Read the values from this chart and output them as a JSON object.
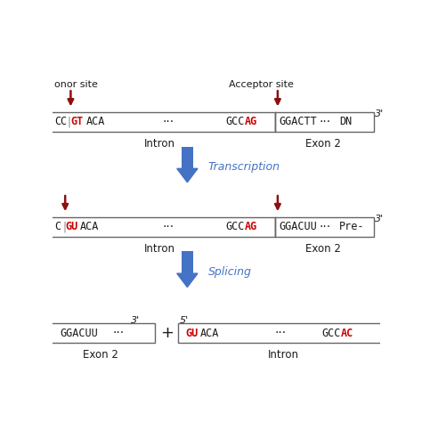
{
  "bg_color": "#ffffff",
  "dark_red": "#8B1010",
  "red": "#CC0000",
  "blue_arrow": "#4472C4",
  "blue_text": "#4472C4",
  "black": "#1a1a1a",
  "donor_label": "onor site",
  "acceptor_label": "Acceptor site",
  "intron_label": "Intron",
  "exon2_label": "Exon 2",
  "transcription_label": "Transcription",
  "splicing_label": "Splicing",
  "prime3": "3'",
  "prime5": "5'"
}
